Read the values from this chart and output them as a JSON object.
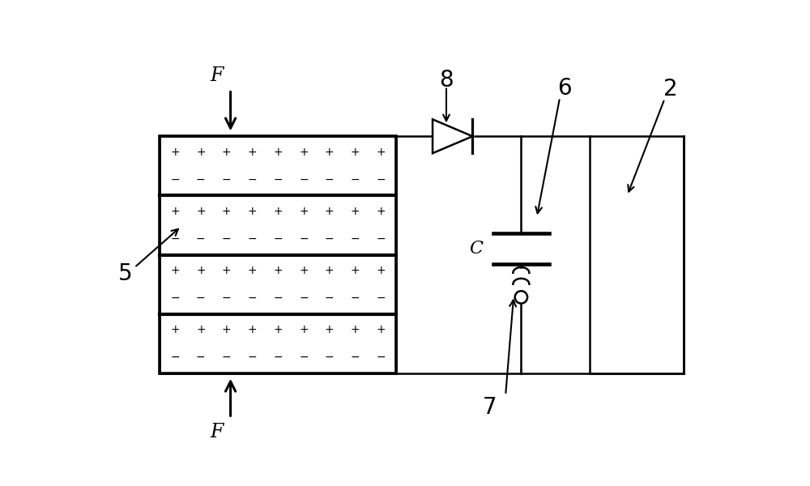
{
  "bg_color": "#ffffff",
  "line_color": "#000000",
  "fig_width": 10.0,
  "fig_height": 6.0,
  "dpi": 100,
  "label_5": "5",
  "label_2": "2",
  "label_6": "6",
  "label_7": "7",
  "label_8": "8",
  "label_C": "C",
  "label_F": "F"
}
